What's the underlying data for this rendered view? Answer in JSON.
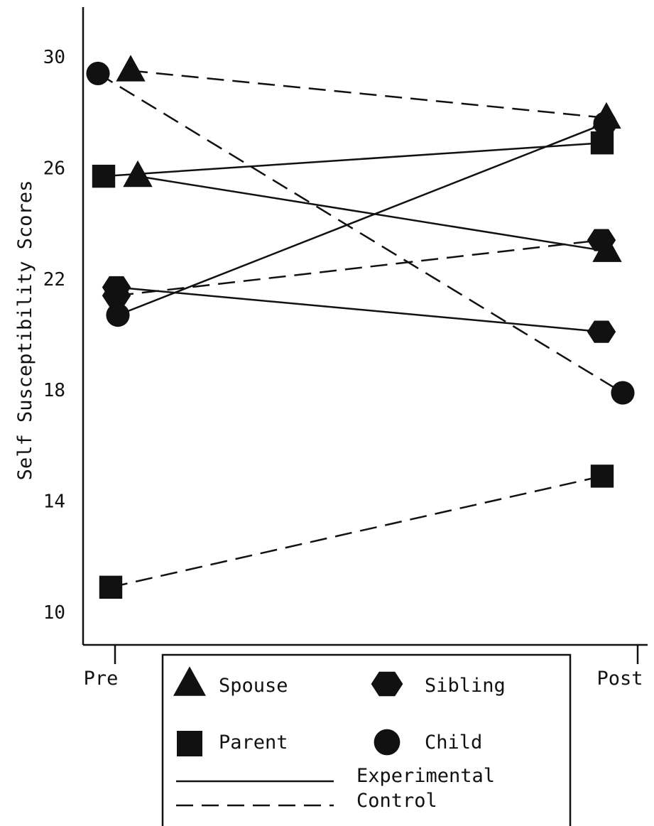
{
  "chart_data": {
    "type": "line",
    "title": "",
    "xlabel": "",
    "ylabel": "Self Susceptibility Scores",
    "categories": [
      "Pre",
      "Post"
    ],
    "ylim": [
      9,
      31
    ],
    "yticks": [
      10,
      14,
      18,
      22,
      26,
      30
    ],
    "grid": false,
    "legend_position": "bottom-center",
    "series": [
      {
        "name": "Spouse",
        "group": "Experimental",
        "marker": "triangle",
        "values": [
          25.7,
          23.0
        ]
      },
      {
        "name": "Spouse",
        "group": "Control",
        "marker": "triangle",
        "values": [
          29.5,
          27.8
        ]
      },
      {
        "name": "Sibling",
        "group": "Experimental",
        "marker": "hexagon",
        "values": [
          21.7,
          20.1
        ]
      },
      {
        "name": "Sibling",
        "group": "Control",
        "marker": "hexagon",
        "values": [
          21.4,
          23.4
        ]
      },
      {
        "name": "Parent",
        "group": "Experimental",
        "marker": "square",
        "values": [
          25.7,
          26.9
        ]
      },
      {
        "name": "Parent",
        "group": "Control",
        "marker": "square",
        "values": [
          10.9,
          14.9
        ]
      },
      {
        "name": "Child",
        "group": "Experimental",
        "marker": "circle",
        "values": [
          20.7,
          27.6
        ]
      },
      {
        "name": "Child",
        "group": "Control",
        "marker": "circle",
        "values": [
          29.4,
          17.9
        ]
      }
    ]
  },
  "legend": {
    "markers": [
      {
        "label": "Spouse",
        "marker": "triangle"
      },
      {
        "label": "Sibling",
        "marker": "hexagon"
      },
      {
        "label": "Parent",
        "marker": "square"
      },
      {
        "label": "Child",
        "marker": "circle"
      }
    ],
    "lines": [
      {
        "label": "Experimental",
        "style": "solid"
      },
      {
        "label": "Control",
        "style": "dashed"
      }
    ]
  },
  "colors": {
    "ink": "#111111",
    "background": "#ffffff"
  }
}
